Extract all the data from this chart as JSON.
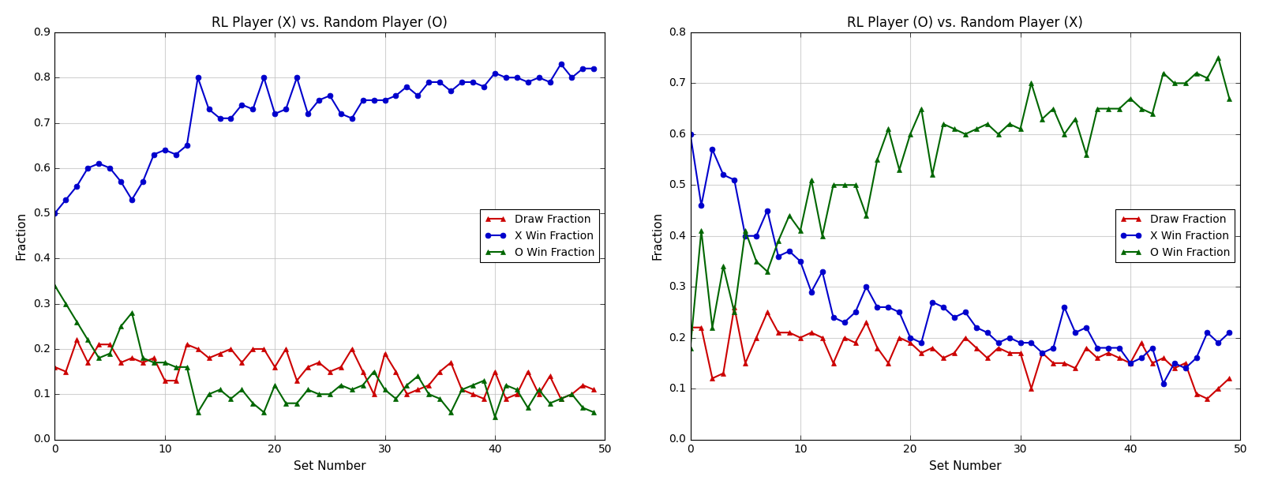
{
  "plot1": {
    "title": "RL Player (X) vs. Random Player (O)",
    "xlabel": "Set Number",
    "ylabel": "Fraction",
    "ylim": [
      0.0,
      0.9
    ],
    "yticks": [
      0.0,
      0.1,
      0.2,
      0.3,
      0.4,
      0.5,
      0.6,
      0.7,
      0.8,
      0.9
    ],
    "xlim": [
      0,
      50
    ],
    "x": [
      0,
      1,
      2,
      3,
      4,
      5,
      6,
      7,
      8,
      9,
      10,
      11,
      12,
      13,
      14,
      15,
      16,
      17,
      18,
      19,
      20,
      21,
      22,
      23,
      24,
      25,
      26,
      27,
      28,
      29,
      30,
      31,
      32,
      33,
      34,
      35,
      36,
      37,
      38,
      39,
      40,
      41,
      42,
      43,
      44,
      45,
      46,
      47,
      48,
      49
    ],
    "draw": [
      0.16,
      0.15,
      0.22,
      0.17,
      0.21,
      0.21,
      0.17,
      0.18,
      0.17,
      0.18,
      0.13,
      0.13,
      0.21,
      0.2,
      0.18,
      0.19,
      0.2,
      0.17,
      0.2,
      0.2,
      0.16,
      0.2,
      0.13,
      0.16,
      0.17,
      0.15,
      0.16,
      0.2,
      0.15,
      0.1,
      0.19,
      0.15,
      0.1,
      0.11,
      0.12,
      0.15,
      0.17,
      0.11,
      0.1,
      0.09,
      0.15,
      0.09,
      0.1,
      0.15,
      0.1,
      0.14,
      0.09,
      0.1,
      0.12,
      0.11
    ],
    "x_win": [
      0.5,
      0.53,
      0.56,
      0.6,
      0.61,
      0.6,
      0.57,
      0.53,
      0.57,
      0.63,
      0.64,
      0.63,
      0.65,
      0.8,
      0.73,
      0.71,
      0.71,
      0.74,
      0.73,
      0.8,
      0.72,
      0.73,
      0.8,
      0.72,
      0.75,
      0.76,
      0.72,
      0.71,
      0.75,
      0.75,
      0.75,
      0.76,
      0.78,
      0.76,
      0.79,
      0.79,
      0.77,
      0.79,
      0.79,
      0.78,
      0.81,
      0.8,
      0.8,
      0.79,
      0.8,
      0.79,
      0.83,
      0.8,
      0.82,
      0.82
    ],
    "o_win": [
      0.34,
      0.3,
      0.26,
      0.22,
      0.18,
      0.19,
      0.25,
      0.28,
      0.18,
      0.17,
      0.17,
      0.16,
      0.16,
      0.06,
      0.1,
      0.11,
      0.09,
      0.11,
      0.08,
      0.06,
      0.12,
      0.08,
      0.08,
      0.11,
      0.1,
      0.1,
      0.12,
      0.11,
      0.12,
      0.15,
      0.11,
      0.09,
      0.12,
      0.14,
      0.1,
      0.09,
      0.06,
      0.11,
      0.12,
      0.13,
      0.05,
      0.12,
      0.11,
      0.07,
      0.11,
      0.08,
      0.09,
      0.1,
      0.07,
      0.06
    ],
    "legend_loc": "center right"
  },
  "plot2": {
    "title": "RL Player (O) vs. Random Player (X)",
    "xlabel": "Set Number",
    "ylabel": "Fraction",
    "ylim": [
      0.0,
      0.8
    ],
    "yticks": [
      0.0,
      0.1,
      0.2,
      0.3,
      0.4,
      0.5,
      0.6,
      0.7,
      0.8
    ],
    "xlim": [
      0,
      50
    ],
    "x": [
      0,
      1,
      2,
      3,
      4,
      5,
      6,
      7,
      8,
      9,
      10,
      11,
      12,
      13,
      14,
      15,
      16,
      17,
      18,
      19,
      20,
      21,
      22,
      23,
      24,
      25,
      26,
      27,
      28,
      29,
      30,
      31,
      32,
      33,
      34,
      35,
      36,
      37,
      38,
      39,
      40,
      41,
      42,
      43,
      44,
      45,
      46,
      47,
      48,
      49
    ],
    "draw": [
      0.22,
      0.22,
      0.12,
      0.13,
      0.26,
      0.15,
      0.2,
      0.25,
      0.21,
      0.21,
      0.2,
      0.21,
      0.2,
      0.15,
      0.2,
      0.19,
      0.23,
      0.18,
      0.15,
      0.2,
      0.19,
      0.17,
      0.18,
      0.16,
      0.17,
      0.2,
      0.18,
      0.16,
      0.18,
      0.17,
      0.17,
      0.1,
      0.17,
      0.15,
      0.15,
      0.14,
      0.18,
      0.16,
      0.17,
      0.16,
      0.15,
      0.19,
      0.15,
      0.16,
      0.14,
      0.15,
      0.09,
      0.08,
      0.1,
      0.12
    ],
    "x_win": [
      0.6,
      0.46,
      0.57,
      0.52,
      0.51,
      0.4,
      0.4,
      0.45,
      0.36,
      0.37,
      0.35,
      0.29,
      0.33,
      0.24,
      0.23,
      0.25,
      0.3,
      0.26,
      0.26,
      0.25,
      0.2,
      0.19,
      0.27,
      0.26,
      0.24,
      0.25,
      0.22,
      0.21,
      0.19,
      0.2,
      0.19,
      0.19,
      0.17,
      0.18,
      0.26,
      0.21,
      0.22,
      0.18,
      0.18,
      0.18,
      0.15,
      0.16,
      0.18,
      0.11,
      0.15,
      0.14,
      0.16,
      0.21,
      0.19,
      0.21
    ],
    "o_win": [
      0.18,
      0.41,
      0.22,
      0.34,
      0.25,
      0.41,
      0.35,
      0.33,
      0.39,
      0.44,
      0.41,
      0.51,
      0.4,
      0.5,
      0.5,
      0.5,
      0.44,
      0.55,
      0.61,
      0.53,
      0.6,
      0.65,
      0.52,
      0.62,
      0.61,
      0.6,
      0.61,
      0.62,
      0.6,
      0.62,
      0.61,
      0.7,
      0.63,
      0.65,
      0.6,
      0.63,
      0.56,
      0.65,
      0.65,
      0.65,
      0.67,
      0.65,
      0.64,
      0.72,
      0.7,
      0.7,
      0.72,
      0.71,
      0.75,
      0.67
    ],
    "legend_loc": "center right"
  },
  "draw_color": "#cc0000",
  "x_win_color": "#0000cc",
  "o_win_color": "#006600",
  "linewidth": 1.5,
  "markersize": 5,
  "bg_color": "#ffffff",
  "grid_color": "#c0c0c0",
  "title_fontsize": 12,
  "label_fontsize": 11,
  "tick_fontsize": 10,
  "legend_fontsize": 10
}
